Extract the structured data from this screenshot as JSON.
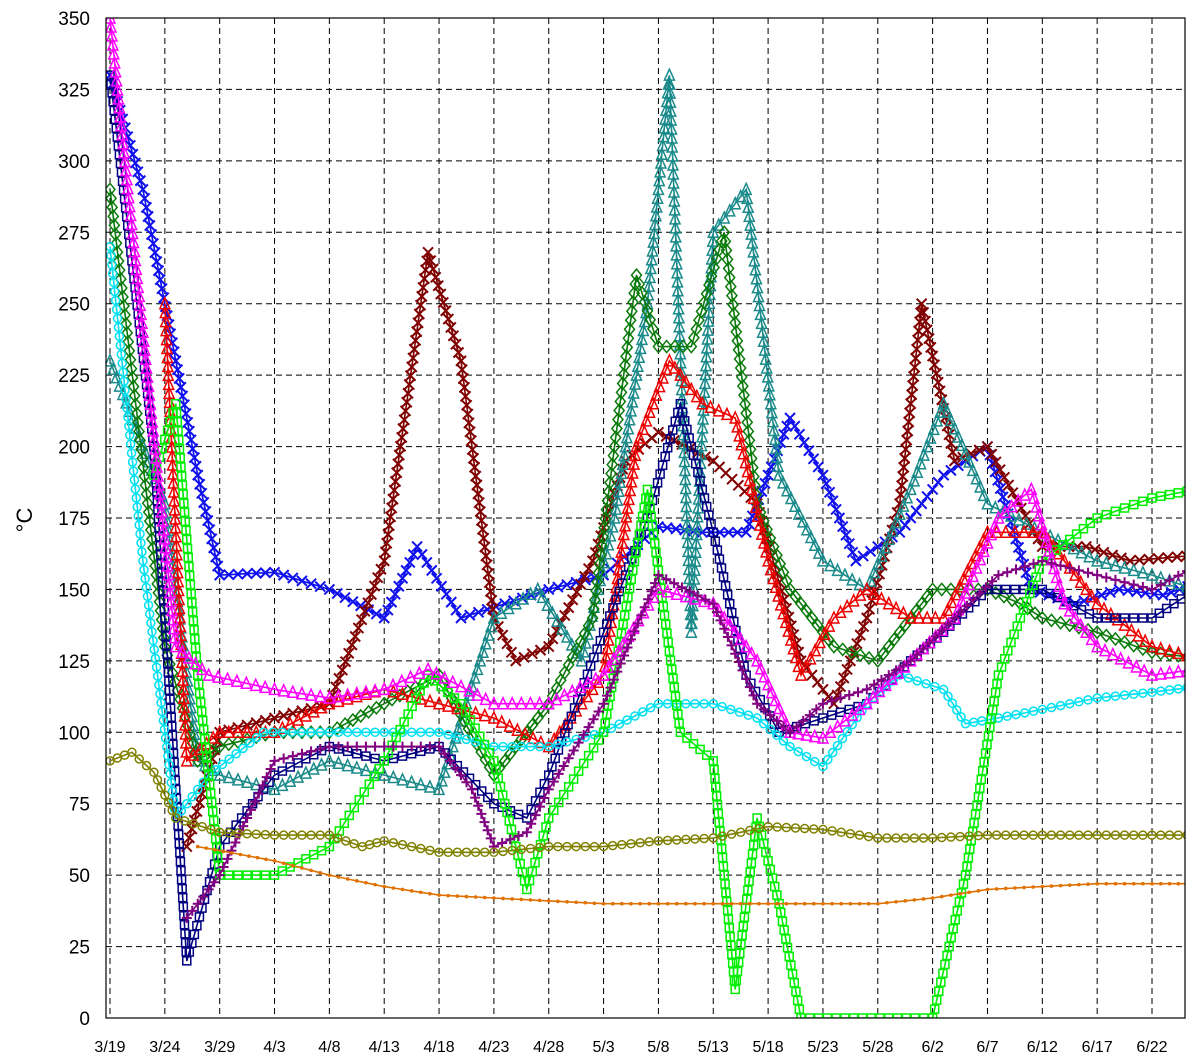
{
  "chart_data": {
    "type": "line",
    "title": "",
    "xlabel": "",
    "ylabel": "°C",
    "ylim": [
      0,
      350
    ],
    "yticks": [
      0,
      25,
      50,
      75,
      100,
      125,
      150,
      175,
      200,
      225,
      250,
      275,
      300,
      325,
      350
    ],
    "xticks": [
      "3/19",
      "3/24",
      "3/29",
      "4/3",
      "4/8",
      "4/13",
      "4/18",
      "4/23",
      "4/28",
      "5/3",
      "5/8",
      "5/13",
      "5/18",
      "5/23",
      "5/28",
      "6/2",
      "6/7",
      "6/12",
      "6/17",
      "6/22"
    ],
    "grid": true,
    "legend": "none",
    "series": [
      {
        "marker": "x",
        "color": "#1010ee",
        "x": [
          "3/19",
          "3/22",
          "3/25",
          "3/27",
          "3/29",
          "4/3",
          "4/8",
          "4/13",
          "4/16",
          "4/20",
          "4/24",
          "4/28",
          "5/3",
          "5/8",
          "5/12",
          "5/16",
          "5/20",
          "5/23",
          "5/26",
          "5/30",
          "6/3",
          "6/7",
          "6/11",
          "6/15",
          "6/19",
          "6/23",
          "6/26"
        ],
        "values": [
          330,
          290,
          230,
          190,
          155,
          156,
          150,
          140,
          165,
          140,
          145,
          150,
          155,
          172,
          170,
          170,
          210,
          190,
          160,
          170,
          190,
          200,
          150,
          145,
          150,
          148,
          152
        ]
      },
      {
        "marker": "x",
        "color": "#800000",
        "x": [
          "3/26",
          "3/29",
          "4/3",
          "4/8",
          "4/13",
          "4/17",
          "4/20",
          "4/23",
          "4/25",
          "4/28",
          "5/2",
          "5/5",
          "5/8",
          "5/13",
          "5/17",
          "5/21",
          "5/24",
          "5/27",
          "5/30",
          "6/1",
          "6/4",
          "6/7",
          "6/12",
          "6/16",
          "6/20",
          "6/26"
        ],
        "values": [
          60,
          100,
          105,
          110,
          160,
          268,
          230,
          140,
          125,
          130,
          160,
          195,
          205,
          195,
          180,
          125,
          110,
          140,
          180,
          250,
          195,
          200,
          165,
          165,
          160,
          162
        ]
      },
      {
        "marker": "triangle",
        "color": "#1a8a8a",
        "x": [
          "3/19",
          "3/24",
          "3/27",
          "3/29",
          "4/3",
          "4/8",
          "4/13",
          "4/18",
          "4/23",
          "4/27",
          "5/1",
          "5/4",
          "5/7",
          "5/9",
          "5/11",
          "5/13",
          "5/16",
          "5/19",
          "5/23",
          "5/27",
          "5/31",
          "6/3",
          "6/7",
          "6/12",
          "6/17",
          "6/22",
          "6/26"
        ],
        "values": [
          230,
          180,
          90,
          85,
          80,
          90,
          85,
          80,
          140,
          150,
          125,
          175,
          250,
          330,
          135,
          275,
          290,
          190,
          160,
          150,
          185,
          215,
          180,
          170,
          160,
          155,
          150
        ]
      },
      {
        "marker": "diamond",
        "color": "#0a7a0a",
        "x": [
          "3/19",
          "3/24",
          "3/27",
          "3/29",
          "4/3",
          "4/8",
          "4/13",
          "4/18",
          "4/23",
          "4/28",
          "5/2",
          "5/6",
          "5/8",
          "5/11",
          "5/14",
          "5/17",
          "5/20",
          "5/24",
          "5/28",
          "6/2",
          "6/7",
          "6/10",
          "6/12",
          "6/17",
          "6/22",
          "6/26"
        ],
        "values": [
          290,
          130,
          90,
          95,
          100,
          100,
          110,
          120,
          85,
          110,
          140,
          260,
          235,
          235,
          275,
          180,
          150,
          130,
          125,
          150,
          150,
          145,
          140,
          135,
          128,
          126
        ]
      },
      {
        "marker": "triangle",
        "color": "#ee0000",
        "x": [
          "3/24",
          "3/26",
          "3/29",
          "4/3",
          "4/8",
          "4/13",
          "4/18",
          "4/23",
          "4/28",
          "5/3",
          "5/6",
          "5/9",
          "5/12",
          "5/15",
          "5/18",
          "5/21",
          "5/24",
          "5/27",
          "5/31",
          "6/3",
          "6/7",
          "6/12",
          "6/17",
          "6/22",
          "6/26"
        ],
        "values": [
          250,
          90,
          100,
          100,
          110,
          115,
          110,
          105,
          95,
          120,
          200,
          230,
          215,
          210,
          160,
          120,
          140,
          150,
          140,
          140,
          170,
          170,
          145,
          130,
          126
        ]
      },
      {
        "marker": "square",
        "color": "#000080",
        "x": [
          "3/19",
          "3/23",
          "3/26",
          "3/29",
          "4/3",
          "4/8",
          "4/13",
          "4/18",
          "4/23",
          "4/26",
          "4/28",
          "5/3",
          "5/7",
          "5/10",
          "5/13",
          "5/16",
          "5/19",
          "5/23",
          "5/27",
          "5/31",
          "6/3",
          "6/7",
          "6/12",
          "6/17",
          "6/22",
          "6/26"
        ],
        "values": [
          330,
          200,
          20,
          60,
          85,
          95,
          90,
          95,
          75,
          70,
          85,
          135,
          175,
          215,
          170,
          120,
          100,
          105,
          110,
          125,
          135,
          150,
          150,
          140,
          140,
          150
        ]
      },
      {
        "marker": "circle",
        "color": "#00e0f0",
        "x": [
          "3/19",
          "3/22",
          "3/25",
          "3/28",
          "4/2",
          "4/8",
          "4/13",
          "4/18",
          "4/23",
          "4/28",
          "5/3",
          "5/8",
          "5/13",
          "5/17",
          "5/20",
          "5/23",
          "5/27",
          "5/30",
          "6/3",
          "6/5",
          "6/8",
          "6/12",
          "6/17",
          "6/22",
          "6/26"
        ],
        "values": [
          270,
          160,
          70,
          85,
          100,
          100,
          100,
          100,
          95,
          95,
          100,
          110,
          110,
          105,
          95,
          88,
          110,
          120,
          115,
          103,
          105,
          108,
          112,
          114,
          116
        ]
      },
      {
        "marker": "square",
        "color": "#00ee00",
        "x": [
          "3/23",
          "3/25",
          "3/27",
          "3/29",
          "4/3",
          "4/8",
          "4/13",
          "4/17",
          "4/20",
          "4/23",
          "4/26",
          "4/28",
          "5/3",
          "5/7",
          "5/10",
          "5/13",
          "5/15",
          "5/17",
          "5/19",
          "5/21",
          "6/2",
          "6/5",
          "6/8",
          "6/12",
          "6/17",
          "6/22",
          "6/26"
        ],
        "values": [
          190,
          215,
          120,
          50,
          50,
          60,
          90,
          120,
          110,
          90,
          45,
          70,
          100,
          185,
          100,
          90,
          10,
          70,
          40,
          0,
          0,
          50,
          120,
          160,
          175,
          182,
          185
        ]
      },
      {
        "marker": "triangle",
        "color": "#ff00ff",
        "x": [
          "3/19",
          "3/25",
          "3/28",
          "4/3",
          "4/8",
          "4/13",
          "4/17",
          "4/23",
          "4/28",
          "5/3",
          "5/8",
          "5/13",
          "5/17",
          "5/20",
          "5/23",
          "5/27",
          "5/31",
          "6/4",
          "6/8",
          "6/11",
          "6/14",
          "6/17",
          "6/22",
          "6/26"
        ],
        "values": [
          350,
          130,
          120,
          115,
          112,
          115,
          122,
          110,
          110,
          120,
          150,
          145,
          125,
          100,
          98,
          110,
          125,
          140,
          175,
          185,
          145,
          130,
          120,
          122
        ]
      },
      {
        "marker": "plus",
        "color": "#800080",
        "x": [
          "3/26",
          "3/29",
          "4/3",
          "4/8",
          "4/13",
          "4/18",
          "4/21",
          "4/23",
          "4/26",
          "4/28",
          "5/3",
          "5/8",
          "5/13",
          "5/17",
          "5/20",
          "5/23",
          "5/27",
          "5/31",
          "6/4",
          "6/8",
          "6/12",
          "6/17",
          "6/22",
          "6/26"
        ],
        "values": [
          35,
          50,
          90,
          95,
          95,
          95,
          80,
          60,
          65,
          80,
          110,
          155,
          145,
          110,
          100,
          110,
          115,
          125,
          140,
          155,
          160,
          155,
          150,
          158
        ]
      },
      {
        "marker": "circle",
        "color": "#808000",
        "x": [
          "3/19",
          "3/21",
          "3/23",
          "3/25",
          "3/29",
          "4/3",
          "4/8",
          "4/11",
          "4/13",
          "4/18",
          "4/23",
          "4/28",
          "5/3",
          "5/8",
          "5/13",
          "5/18",
          "5/23",
          "5/28",
          "6/2",
          "6/7",
          "6/12",
          "6/17",
          "6/22",
          "6/26"
        ],
        "values": [
          90,
          93,
          86,
          70,
          65,
          64,
          64,
          60,
          62,
          58,
          58,
          60,
          60,
          62,
          63,
          67,
          66,
          63,
          63,
          64,
          64,
          64,
          64,
          64
        ]
      },
      {
        "marker": "dot",
        "color": "#e07000",
        "x": [
          "3/27",
          "4/3",
          "4/8",
          "4/13",
          "4/18",
          "4/23",
          "4/28",
          "5/3",
          "5/8",
          "5/13",
          "5/18",
          "5/23",
          "5/28",
          "6/2",
          "6/7",
          "6/12",
          "6/17",
          "6/22",
          "6/26"
        ],
        "values": [
          60,
          55,
          50,
          46,
          43,
          42,
          41,
          40,
          40,
          40,
          40,
          40,
          40,
          42,
          45,
          46,
          47,
          47,
          47
        ]
      }
    ]
  }
}
